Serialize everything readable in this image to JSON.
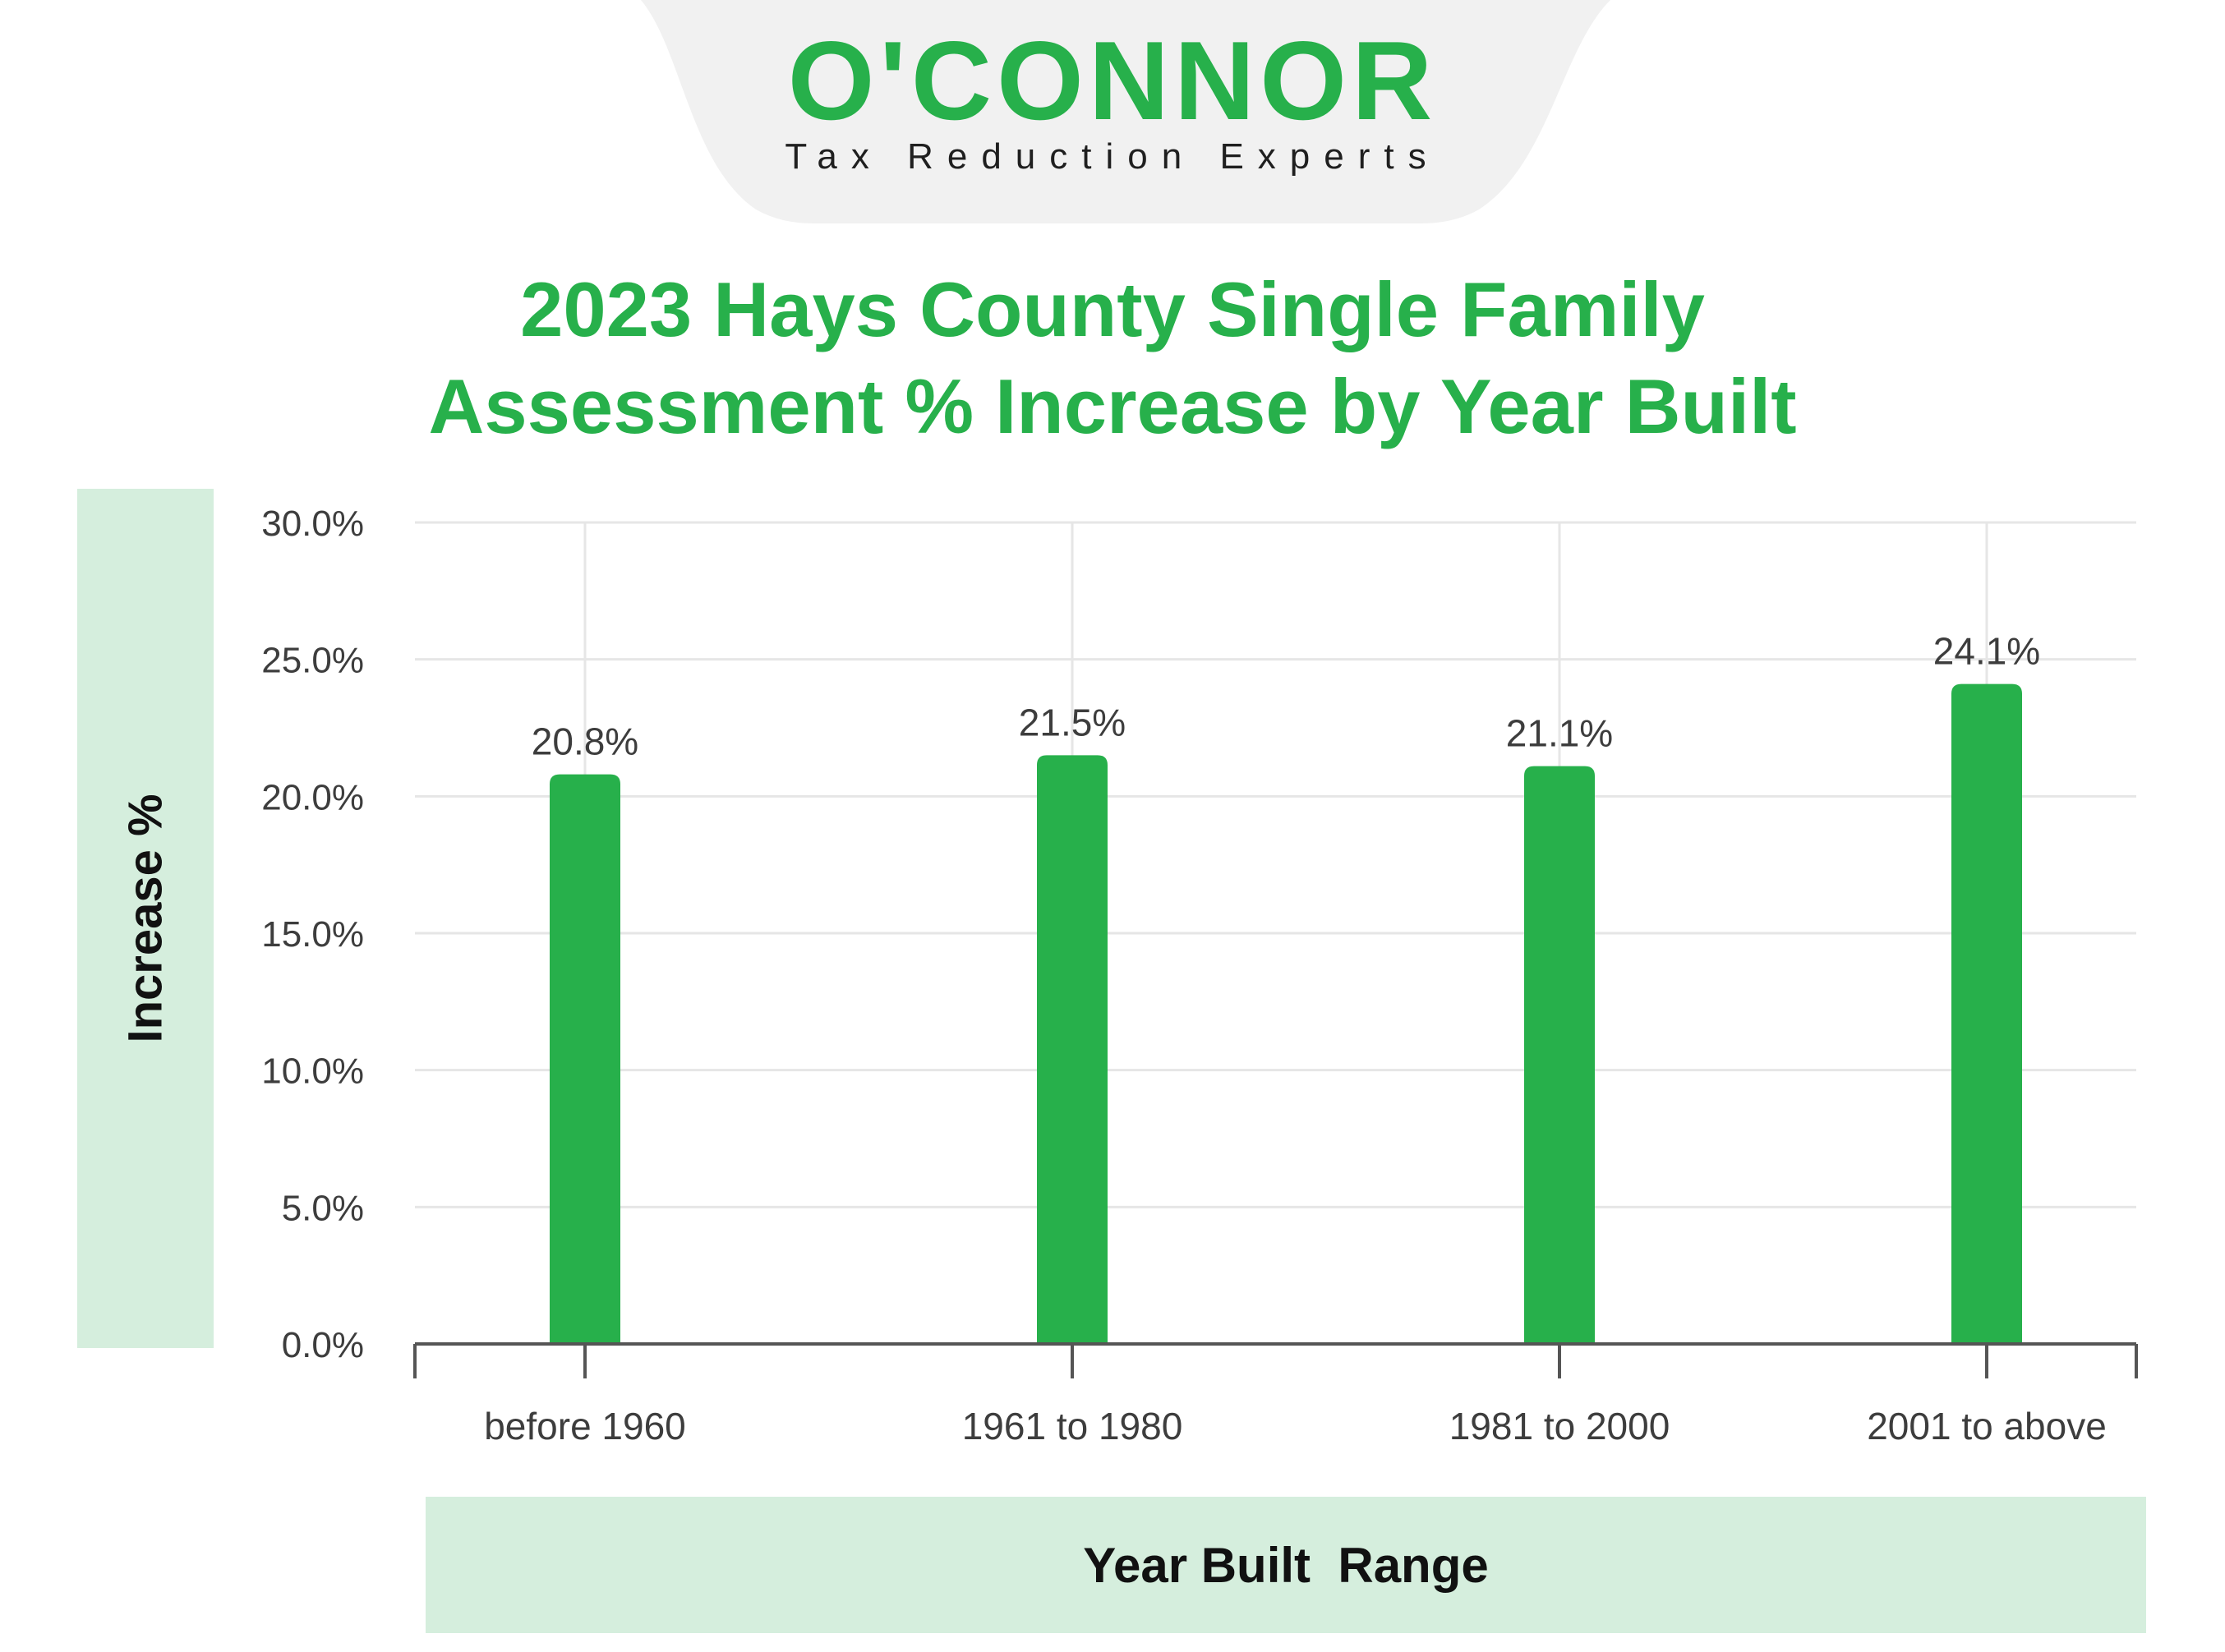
{
  "logo": {
    "wordmark": "O'CONNOR",
    "tagline": "Tax Reduction Experts",
    "tab_color": "#f1f1f1"
  },
  "colors": {
    "brand_green": "#27b04b",
    "label_panel": "#d5eedd",
    "grid": "#e6e6e6",
    "axis": "#555555"
  },
  "chart_data": {
    "type": "bar",
    "title_line1": "2023 Hays County Single Family",
    "title_line2": "Assessment % Increase by Year Built",
    "xlabel": "Year Built  Range",
    "ylabel": "Increase %",
    "categories": [
      "before 1960",
      "1961 to 1980",
      "1981 to 2000",
      "2001 to above"
    ],
    "values": [
      20.8,
      21.5,
      21.1,
      24.1
    ],
    "value_labels": [
      "20.8%",
      "21.5%",
      "21.1%",
      "24.1%"
    ],
    "ylim": [
      0,
      30
    ],
    "yticks": [
      0,
      5,
      10,
      15,
      20,
      25,
      30
    ],
    "ytick_labels": [
      "0.0%",
      "5.0%",
      "10.0%",
      "15.0%",
      "20.0%",
      "25.0%",
      "30.0%"
    ],
    "grid": true,
    "legend": "none",
    "bar_color": "#27b04b"
  }
}
